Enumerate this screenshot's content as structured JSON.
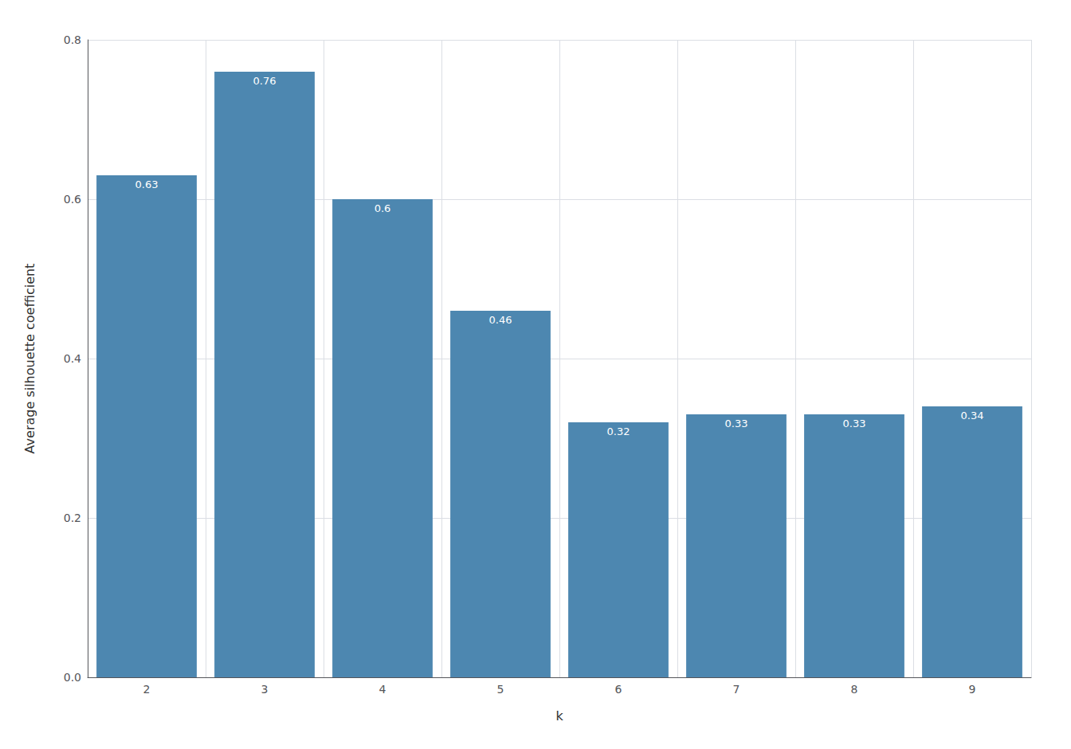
{
  "chart_data": {
    "type": "bar",
    "xlabel": "k",
    "ylabel": "Average silhouette coefficient",
    "categories": [
      "2",
      "3",
      "4",
      "5",
      "6",
      "7",
      "8",
      "9"
    ],
    "values": [
      0.63,
      0.76,
      0.6,
      0.46,
      0.32,
      0.33,
      0.33,
      0.34
    ],
    "color": "#4d87b0",
    "ylim": [
      0,
      0.8
    ],
    "yticks": [
      {
        "value": 0.0,
        "label": "0.0"
      },
      0.2,
      0.4,
      0.6,
      0.8
    ],
    "grid": true,
    "data_labels": true
  }
}
